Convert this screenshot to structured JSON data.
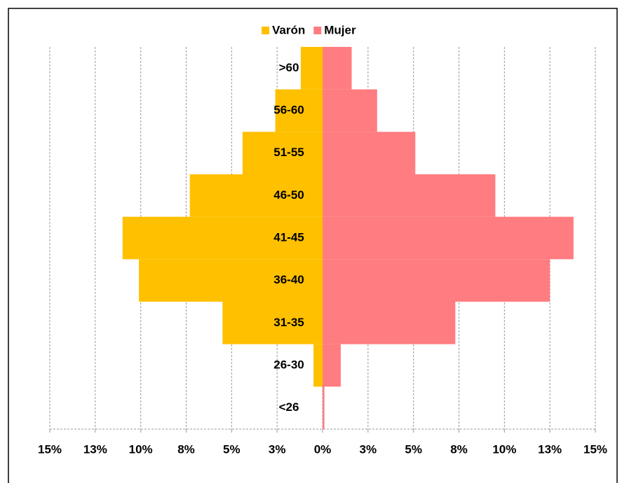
{
  "chart_data": {
    "type": "pyramid",
    "categories": [
      ">60",
      "56-60",
      "51-55",
      "46-50",
      "41-45",
      "36-40",
      "31-35",
      "26-30",
      "<26"
    ],
    "series": [
      {
        "name": "Varón",
        "color": "#ffc000",
        "values": [
          -1.2,
          -2.6,
          -4.4,
          -7.3,
          -11.0,
          -10.1,
          -5.5,
          -0.5,
          0
        ]
      },
      {
        "name": "Mujer",
        "color": "#ff7c80",
        "values": [
          1.6,
          3.0,
          5.1,
          9.5,
          13.8,
          12.5,
          7.3,
          1.0,
          0.1
        ]
      }
    ],
    "xlim": [
      -15,
      15
    ],
    "xticks": [
      {
        "value": -15,
        "label": "15%"
      },
      {
        "value": -12.5,
        "label": "13%"
      },
      {
        "value": -10,
        "label": "10%"
      },
      {
        "value": -7.5,
        "label": "8%"
      },
      {
        "value": -5,
        "label": "5%"
      },
      {
        "value": -2.5,
        "label": "3%"
      },
      {
        "value": 0,
        "label": "0%"
      },
      {
        "value": 2.5,
        "label": "3%"
      },
      {
        "value": 5,
        "label": "5%"
      },
      {
        "value": 7.5,
        "label": "8%"
      },
      {
        "value": 10,
        "label": "10%"
      },
      {
        "value": 12.5,
        "label": "13%"
      },
      {
        "value": 15,
        "label": "15%"
      }
    ],
    "grid": true,
    "legend": "top"
  }
}
